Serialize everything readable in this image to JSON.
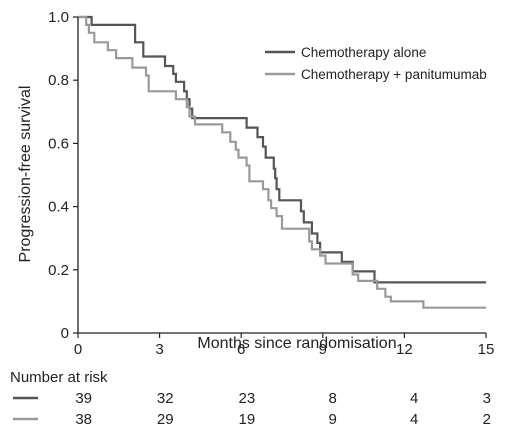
{
  "chart_data": {
    "type": "line",
    "title": "",
    "xlabel": "Months since randomisation",
    "ylabel": "Progression-free survival",
    "xlim": [
      0,
      15
    ],
    "ylim": [
      0,
      1.0
    ],
    "x_ticks": [
      "0",
      "3",
      "6",
      "9",
      "12",
      "15"
    ],
    "y_ticks": [
      "0",
      "0.2",
      "0.4",
      "0.6",
      "0.8",
      "1.0"
    ],
    "grid": false,
    "legend_position": "top-right",
    "series": [
      {
        "name": "Chemotherapy alone",
        "color": "#555555",
        "step": true,
        "points": [
          [
            0,
            1.0
          ],
          [
            0.5,
            1.0
          ],
          [
            0.5,
            0.975
          ],
          [
            2.1,
            0.975
          ],
          [
            2.1,
            0.92
          ],
          [
            2.4,
            0.92
          ],
          [
            2.4,
            0.875
          ],
          [
            3.2,
            0.875
          ],
          [
            3.2,
            0.845
          ],
          [
            3.5,
            0.845
          ],
          [
            3.5,
            0.82
          ],
          [
            3.6,
            0.82
          ],
          [
            3.6,
            0.795
          ],
          [
            3.9,
            0.795
          ],
          [
            3.9,
            0.765
          ],
          [
            4.0,
            0.765
          ],
          [
            4.0,
            0.74
          ],
          [
            4.1,
            0.74
          ],
          [
            4.1,
            0.71
          ],
          [
            4.2,
            0.71
          ],
          [
            4.2,
            0.68
          ],
          [
            6.2,
            0.68
          ],
          [
            6.2,
            0.65
          ],
          [
            6.6,
            0.65
          ],
          [
            6.6,
            0.62
          ],
          [
            6.8,
            0.62
          ],
          [
            6.8,
            0.59
          ],
          [
            6.9,
            0.59
          ],
          [
            6.9,
            0.555
          ],
          [
            7.2,
            0.555
          ],
          [
            7.2,
            0.52
          ],
          [
            7.25,
            0.52
          ],
          [
            7.25,
            0.49
          ],
          [
            7.3,
            0.49
          ],
          [
            7.3,
            0.455
          ],
          [
            7.4,
            0.455
          ],
          [
            7.4,
            0.42
          ],
          [
            8.2,
            0.42
          ],
          [
            8.2,
            0.385
          ],
          [
            8.3,
            0.385
          ],
          [
            8.3,
            0.35
          ],
          [
            8.6,
            0.35
          ],
          [
            8.6,
            0.315
          ],
          [
            8.8,
            0.315
          ],
          [
            8.8,
            0.285
          ],
          [
            8.9,
            0.285
          ],
          [
            8.9,
            0.255
          ],
          [
            9.7,
            0.255
          ],
          [
            9.7,
            0.225
          ],
          [
            10.1,
            0.225
          ],
          [
            10.1,
            0.195
          ],
          [
            10.9,
            0.195
          ],
          [
            10.9,
            0.16
          ],
          [
            15.0,
            0.16
          ]
        ]
      },
      {
        "name": "Chemotherapy + panitumumab",
        "color": "#999999",
        "step": true,
        "points": [
          [
            0,
            1.0
          ],
          [
            0.3,
            1.0
          ],
          [
            0.3,
            0.975
          ],
          [
            0.4,
            0.975
          ],
          [
            0.4,
            0.95
          ],
          [
            0.6,
            0.95
          ],
          [
            0.6,
            0.92
          ],
          [
            1.1,
            0.92
          ],
          [
            1.1,
            0.895
          ],
          [
            1.4,
            0.895
          ],
          [
            1.4,
            0.87
          ],
          [
            2.0,
            0.87
          ],
          [
            2.0,
            0.84
          ],
          [
            2.5,
            0.84
          ],
          [
            2.5,
            0.815
          ],
          [
            2.6,
            0.815
          ],
          [
            2.6,
            0.765
          ],
          [
            3.6,
            0.765
          ],
          [
            3.6,
            0.74
          ],
          [
            4.0,
            0.74
          ],
          [
            4.0,
            0.715
          ],
          [
            4.1,
            0.715
          ],
          [
            4.1,
            0.685
          ],
          [
            4.3,
            0.685
          ],
          [
            4.3,
            0.66
          ],
          [
            5.3,
            0.66
          ],
          [
            5.3,
            0.635
          ],
          [
            5.6,
            0.635
          ],
          [
            5.6,
            0.605
          ],
          [
            5.8,
            0.605
          ],
          [
            5.8,
            0.58
          ],
          [
            5.9,
            0.58
          ],
          [
            5.9,
            0.555
          ],
          [
            6.2,
            0.555
          ],
          [
            6.2,
            0.53
          ],
          [
            6.3,
            0.53
          ],
          [
            6.3,
            0.48
          ],
          [
            6.8,
            0.48
          ],
          [
            6.8,
            0.455
          ],
          [
            7.0,
            0.455
          ],
          [
            7.0,
            0.42
          ],
          [
            7.1,
            0.42
          ],
          [
            7.1,
            0.395
          ],
          [
            7.3,
            0.395
          ],
          [
            7.3,
            0.37
          ],
          [
            7.5,
            0.37
          ],
          [
            7.5,
            0.33
          ],
          [
            8.5,
            0.33
          ],
          [
            8.5,
            0.29
          ],
          [
            8.6,
            0.29
          ],
          [
            8.6,
            0.265
          ],
          [
            8.9,
            0.265
          ],
          [
            8.9,
            0.245
          ],
          [
            9.1,
            0.245
          ],
          [
            9.1,
            0.22
          ],
          [
            10.1,
            0.22
          ],
          [
            10.1,
            0.185
          ],
          [
            10.3,
            0.185
          ],
          [
            10.3,
            0.165
          ],
          [
            11.0,
            0.165
          ],
          [
            11.0,
            0.14
          ],
          [
            11.3,
            0.14
          ],
          [
            11.3,
            0.115
          ],
          [
            11.5,
            0.115
          ],
          [
            11.5,
            0.1
          ],
          [
            12.7,
            0.1
          ],
          [
            12.7,
            0.08
          ],
          [
            15.0,
            0.08
          ]
        ]
      }
    ],
    "risk_table": {
      "title": "Number at risk",
      "times": [
        0,
        3,
        6,
        9,
        12,
        15
      ],
      "rows": [
        {
          "series": "Chemotherapy alone",
          "values": [
            "39",
            "32",
            "23",
            "8",
            "4",
            "3"
          ]
        },
        {
          "series": "Chemotherapy + panitumumab",
          "values": [
            "38",
            "29",
            "19",
            "9",
            "4",
            "2"
          ]
        }
      ]
    }
  }
}
